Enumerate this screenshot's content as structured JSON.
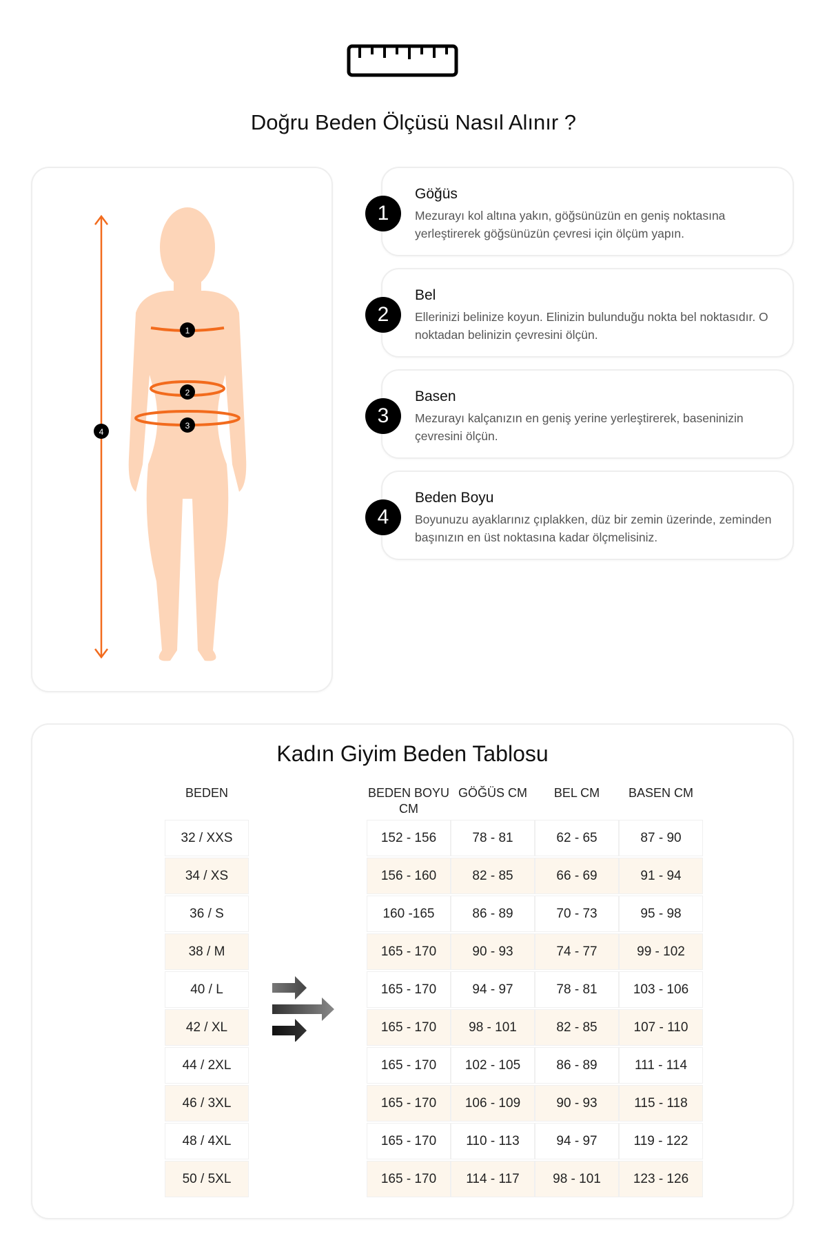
{
  "title": "Doğru Beden Ölçüsü Nasıl Alınır ?",
  "accent": "#f26b1d",
  "skin": "#fdd5b8",
  "steps": [
    {
      "num": "1",
      "title": "Göğüs",
      "desc": "Mezurayı kol altına yakın, göğsünüzün en geniş noktasına yerleştirerek göğsünüzün çevresi için ölçüm yapın."
    },
    {
      "num": "2",
      "title": "Bel",
      "desc": "Ellerinizi belinize koyun. Elinizin bulunduğu nokta bel noktasıdır. O noktadan belinizin çevresini ölçün."
    },
    {
      "num": "3",
      "title": "Basen",
      "desc": "Mezurayı kalçanızın en geniş yerine yerleştirerek, baseninizin çevresini ölçün."
    },
    {
      "num": "4",
      "title": "Beden Boyu",
      "desc": "Boyunuzu ayaklarınız çıplakken, düz bir zemin üzerinde, zeminden başınızın en üst noktasına kadar ölçmelisiniz."
    }
  ],
  "figure_markers": [
    "1",
    "2",
    "3",
    "4"
  ],
  "table": {
    "title": "Kadın Giyim Beden Tablosu",
    "size_header": "BEDEN",
    "headers": [
      "BEDEN BOYU CM",
      "GÖĞÜS CM",
      "BEL CM",
      "BASEN CM"
    ],
    "sizes": [
      "32 / XXS",
      "34 / XS",
      "36 / S",
      "38 / M",
      "40 / L",
      "42 / XL",
      "44 / 2XL",
      "46 / 3XL",
      "48 / 4XL",
      "50 / 5XL"
    ],
    "rows": [
      [
        "152 - 156",
        "78 - 81",
        "62 - 65",
        "87 - 90"
      ],
      [
        "156 - 160",
        "82 - 85",
        "66 - 69",
        "91 - 94"
      ],
      [
        "160 -165",
        "86 - 89",
        "70 - 73",
        "95 - 98"
      ],
      [
        "165 - 170",
        "90 - 93",
        "74 - 77",
        "99 - 102"
      ],
      [
        "165 - 170",
        "94 - 97",
        "78 - 81",
        "103 - 106"
      ],
      [
        "165 - 170",
        "98 - 101",
        "82 - 85",
        "107 - 110"
      ],
      [
        "165 - 170",
        "102 - 105",
        "86 - 89",
        "111 - 114"
      ],
      [
        "165 - 170",
        "106 - 109",
        "90 - 93",
        "115 - 118"
      ],
      [
        "165 - 170",
        "110 - 113",
        "94 - 97",
        "119 - 122"
      ],
      [
        "165 - 170",
        "114 - 117",
        "98 - 101",
        "123 - 126"
      ]
    ]
  }
}
